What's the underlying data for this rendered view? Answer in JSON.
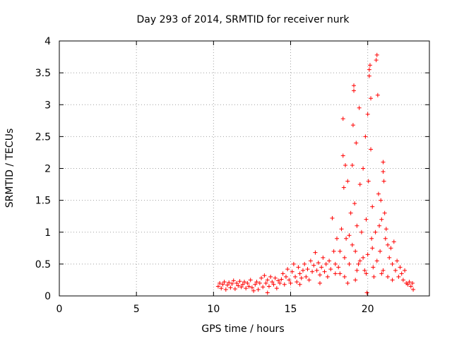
{
  "chart_data": {
    "type": "scatter",
    "title": "Day 293 of 2014, SRMTID for receiver nurk",
    "xlabel": "GPS time / hours",
    "ylabel": "SRMTID / TECUs",
    "xlim": [
      0,
      24
    ],
    "ylim": [
      0,
      4
    ],
    "xticks": [
      0,
      5,
      10,
      15,
      20
    ],
    "xtick_labels": [
      "0",
      "5",
      "10",
      "15",
      "20"
    ],
    "yticks": [
      0,
      0.5,
      1,
      1.5,
      2,
      2.5,
      3,
      3.5,
      4
    ],
    "ytick_labels": [
      "0",
      "0.5",
      "1",
      "1.5",
      "2",
      "2.5",
      "3",
      "3.5",
      "4"
    ],
    "grid": true,
    "marker": "+",
    "series": [
      {
        "name": "SRMTID",
        "color": "#ff0000",
        "points": [
          [
            10.3,
            0.15
          ],
          [
            10.4,
            0.2
          ],
          [
            10.5,
            0.12
          ],
          [
            10.6,
            0.18
          ],
          [
            10.7,
            0.22
          ],
          [
            10.8,
            0.1
          ],
          [
            10.9,
            0.17
          ],
          [
            11.0,
            0.21
          ],
          [
            11.1,
            0.13
          ],
          [
            11.2,
            0.19
          ],
          [
            11.3,
            0.24
          ],
          [
            11.4,
            0.11
          ],
          [
            11.5,
            0.2
          ],
          [
            11.6,
            0.16
          ],
          [
            11.7,
            0.23
          ],
          [
            11.8,
            0.14
          ],
          [
            11.9,
            0.18
          ],
          [
            12.0,
            0.22
          ],
          [
            12.1,
            0.12
          ],
          [
            12.2,
            0.2
          ],
          [
            12.3,
            0.15
          ],
          [
            12.4,
            0.25
          ],
          [
            12.5,
            0.13
          ],
          [
            12.6,
            0.08
          ],
          [
            12.7,
            0.18
          ],
          [
            12.8,
            0.22
          ],
          [
            12.9,
            0.1
          ],
          [
            13.0,
            0.2
          ],
          [
            13.1,
            0.28
          ],
          [
            13.2,
            0.14
          ],
          [
            13.3,
            0.32
          ],
          [
            13.4,
            0.2
          ],
          [
            13.5,
            0.25
          ],
          [
            13.6,
            0.15
          ],
          [
            13.7,
            0.3
          ],
          [
            13.8,
            0.22
          ],
          [
            13.9,
            0.18
          ],
          [
            14.0,
            0.28
          ],
          [
            14.1,
            0.12
          ],
          [
            14.2,
            0.24
          ],
          [
            14.3,
            0.2
          ],
          [
            14.4,
            0.26
          ],
          [
            14.5,
            0.35
          ],
          [
            14.6,
            0.18
          ],
          [
            14.7,
            0.3
          ],
          [
            14.8,
            0.42
          ],
          [
            14.9,
            0.25
          ],
          [
            15.0,
            0.2
          ],
          [
            15.1,
            0.38
          ],
          [
            15.2,
            0.5
          ],
          [
            15.3,
            0.3
          ],
          [
            15.4,
            0.22
          ],
          [
            15.5,
            0.45
          ],
          [
            15.6,
            0.35
          ],
          [
            15.7,
            0.28
          ],
          [
            15.8,
            0.4
          ],
          [
            15.9,
            0.5
          ],
          [
            16.0,
            0.3
          ],
          [
            16.1,
            0.42
          ],
          [
            16.2,
            0.25
          ],
          [
            16.3,
            0.55
          ],
          [
            16.4,
            0.38
          ],
          [
            16.5,
            0.48
          ],
          [
            16.6,
            0.68
          ],
          [
            16.7,
            0.4
          ],
          [
            16.8,
            0.52
          ],
          [
            16.9,
            0.33
          ],
          [
            17.0,
            0.45
          ],
          [
            17.1,
            0.6
          ],
          [
            17.2,
            0.38
          ],
          [
            17.3,
            0.5
          ],
          [
            17.4,
            0.3
          ],
          [
            17.5,
            0.55
          ],
          [
            17.6,
            0.42
          ],
          [
            17.7,
            1.22
          ],
          [
            17.8,
            0.7
          ],
          [
            17.9,
            0.5
          ],
          [
            18.0,
            0.9
          ],
          [
            18.1,
            0.45
          ],
          [
            18.2,
            0.35
          ],
          [
            18.3,
            1.05
          ],
          [
            18.4,
            2.2
          ],
          [
            18.4,
            2.78
          ],
          [
            18.45,
            1.7
          ],
          [
            18.5,
            0.6
          ],
          [
            18.55,
            2.05
          ],
          [
            18.6,
            0.9
          ],
          [
            18.7,
            1.8
          ],
          [
            18.8,
            0.5
          ],
          [
            18.9,
            1.3
          ],
          [
            19.0,
            2.05
          ],
          [
            19.0,
            0.8
          ],
          [
            19.05,
            2.68
          ],
          [
            19.1,
            3.3
          ],
          [
            19.1,
            3.22
          ],
          [
            19.15,
            1.45
          ],
          [
            19.2,
            0.7
          ],
          [
            19.25,
            2.4
          ],
          [
            19.3,
            1.1
          ],
          [
            19.4,
            0.5
          ],
          [
            19.45,
            2.95
          ],
          [
            19.5,
            1.75
          ],
          [
            19.6,
            1.0
          ],
          [
            19.7,
            2.0
          ],
          [
            19.8,
            0.4
          ],
          [
            19.85,
            2.5
          ],
          [
            19.9,
            1.2
          ],
          [
            20.0,
            2.85
          ],
          [
            20.0,
            0.65
          ],
          [
            20.05,
            1.8
          ],
          [
            20.1,
            3.55
          ],
          [
            20.1,
            3.45
          ],
          [
            20.15,
            3.62
          ],
          [
            20.2,
            3.1
          ],
          [
            20.2,
            2.3
          ],
          [
            20.25,
            0.9
          ],
          [
            20.3,
            1.4
          ],
          [
            20.35,
            0.45
          ],
          [
            20.4,
            0.3
          ],
          [
            20.5,
            1.0
          ],
          [
            20.55,
            3.7
          ],
          [
            20.6,
            3.78
          ],
          [
            20.65,
            3.15
          ],
          [
            20.7,
            1.6
          ],
          [
            20.75,
            1.1
          ],
          [
            20.8,
            0.7
          ],
          [
            20.85,
            1.5
          ],
          [
            20.9,
            1.2
          ],
          [
            21.0,
            2.1
          ],
          [
            21.0,
            1.95
          ],
          [
            21.05,
            1.8
          ],
          [
            21.1,
            1.3
          ],
          [
            21.15,
            0.9
          ],
          [
            21.2,
            1.05
          ],
          [
            21.3,
            0.8
          ],
          [
            21.4,
            0.6
          ],
          [
            21.5,
            0.75
          ],
          [
            21.6,
            0.5
          ],
          [
            21.7,
            0.85
          ],
          [
            21.8,
            0.4
          ],
          [
            21.9,
            0.55
          ],
          [
            22.0,
            0.3
          ],
          [
            22.1,
            0.45
          ],
          [
            22.2,
            0.35
          ],
          [
            22.3,
            0.25
          ],
          [
            22.4,
            0.4
          ],
          [
            22.5,
            0.2
          ],
          [
            22.6,
            0.18
          ],
          [
            22.7,
            0.22
          ],
          [
            22.8,
            0.15
          ],
          [
            22.9,
            0.2
          ],
          [
            18.5,
            0.3
          ],
          [
            18.8,
            0.95
          ],
          [
            19.2,
            0.25
          ],
          [
            19.5,
            0.55
          ],
          [
            19.9,
            0.35
          ],
          [
            20.3,
            0.75
          ],
          [
            20.6,
            0.55
          ],
          [
            21.0,
            0.4
          ],
          [
            21.3,
            0.3
          ],
          [
            17.9,
            0.35
          ],
          [
            18.2,
            0.7
          ],
          [
            18.7,
            0.2
          ],
          [
            19.3,
            0.4
          ],
          [
            19.7,
            0.6
          ],
          [
            20.9,
            0.35
          ],
          [
            21.6,
            0.25
          ],
          [
            19.95,
            0.05
          ],
          [
            22.95,
            0.1
          ],
          [
            16.9,
            0.2
          ],
          [
            15.6,
            0.18
          ],
          [
            13.5,
            0.05
          ]
        ]
      }
    ]
  }
}
